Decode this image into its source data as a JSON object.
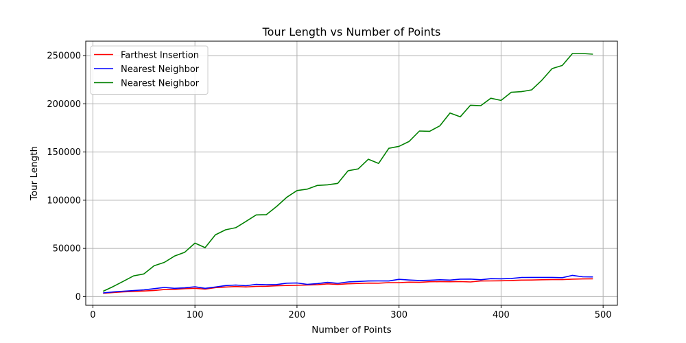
{
  "chart_data": {
    "type": "line",
    "title": "Tour Length vs Number of Points",
    "xlabel": "Number of Points",
    "ylabel": "Tour Length",
    "xlim": [
      -7,
      514
    ],
    "ylim": [
      -9000,
      265000
    ],
    "xticks": [
      0,
      100,
      200,
      300,
      400,
      500
    ],
    "xtick_labels": [
      "0",
      "100",
      "200",
      "300",
      "400",
      "500"
    ],
    "yticks": [
      0,
      50000,
      100000,
      150000,
      200000,
      250000
    ],
    "ytick_labels": [
      "0",
      "50000",
      "100000",
      "150000",
      "200000",
      "250000"
    ],
    "grid": true,
    "legend_position": "top-left",
    "x": [
      10,
      20,
      30,
      40,
      50,
      60,
      70,
      80,
      90,
      100,
      110,
      120,
      130,
      140,
      150,
      160,
      170,
      180,
      190,
      200,
      210,
      220,
      230,
      240,
      250,
      260,
      270,
      280,
      290,
      300,
      310,
      320,
      330,
      340,
      350,
      360,
      370,
      380,
      390,
      400,
      410,
      420,
      430,
      440,
      450,
      460,
      470,
      480,
      490
    ],
    "series": [
      {
        "name": "Farthest Insertion",
        "color": "#ff0000",
        "values": [
          3500,
          4200,
          4900,
          5400,
          5800,
          6400,
          7300,
          7500,
          8200,
          8600,
          7800,
          9300,
          9900,
          10400,
          10000,
          10600,
          10700,
          11200,
          11500,
          11800,
          12000,
          12300,
          13200,
          12600,
          13300,
          13600,
          14000,
          13900,
          14500,
          14500,
          15000,
          14800,
          15400,
          15500,
          15400,
          15600,
          15200,
          16200,
          16300,
          16400,
          16700,
          17100,
          17200,
          17500,
          17600,
          17600,
          18100,
          18300,
          18500
        ]
      },
      {
        "name": "Nearest Neighbor",
        "color": "#0000ff",
        "values": [
          3800,
          4800,
          5600,
          6200,
          7000,
          8200,
          9500,
          8600,
          9100,
          10200,
          8600,
          9900,
          11400,
          12000,
          11300,
          12600,
          12300,
          12500,
          13900,
          14100,
          12700,
          13500,
          14800,
          13800,
          15200,
          15700,
          16200,
          16300,
          16200,
          17900,
          17200,
          16700,
          17000,
          17500,
          17100,
          18100,
          18200,
          17500,
          18600,
          18500,
          18800,
          19800,
          19900,
          19900,
          19900,
          19600,
          22000,
          20500,
          20400
        ]
      },
      {
        "name": "Nearest Neighbor",
        "color": "#008000",
        "values": [
          5500,
          10500,
          16000,
          21500,
          23500,
          32000,
          35500,
          42000,
          46000,
          55500,
          50800,
          64000,
          69300,
          71500,
          78000,
          84700,
          85000,
          93500,
          103000,
          110000,
          111500,
          115300,
          116000,
          117500,
          130500,
          132500,
          142500,
          138200,
          153800,
          155900,
          161000,
          171800,
          171500,
          177200,
          190500,
          186500,
          198500,
          198000,
          205800,
          203500,
          212000,
          212600,
          214500,
          224500,
          236500,
          239800,
          252200,
          252200,
          251500
        ]
      }
    ]
  }
}
